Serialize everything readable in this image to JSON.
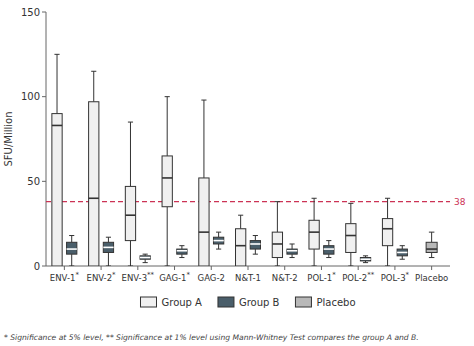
{
  "chart_data": {
    "type": "box",
    "ylabel": "SFU/Million",
    "categories": [
      "ENV-1",
      "ENV-2",
      "ENV-3",
      "GAG-1",
      "GAG-2",
      "N&T-1",
      "N&T-2",
      "POL-1",
      "POL-2",
      "POL-3",
      "Placebo"
    ],
    "significance": [
      "*",
      "*",
      "**",
      "*",
      null,
      null,
      null,
      "*",
      "**",
      "*",
      null
    ],
    "series": [
      {
        "name": "Group A",
        "color": "#f0f0f0",
        "values": [
          [
            0,
            0,
            83,
            90,
            125
          ],
          [
            0,
            0,
            40,
            97,
            115
          ],
          [
            0,
            15,
            30,
            47,
            85
          ],
          [
            0,
            35,
            52,
            65,
            100
          ],
          [
            0,
            0,
            20,
            52,
            98
          ],
          [
            0,
            0,
            12,
            22,
            30
          ],
          [
            0,
            5,
            13,
            20,
            38
          ],
          [
            0,
            10,
            20,
            27,
            40
          ],
          [
            0,
            8,
            18,
            25,
            37
          ],
          [
            0,
            12,
            22,
            28,
            40
          ],
          null
        ]
      },
      {
        "name": "Group B",
        "color": "#4a5e6a",
        "values": [
          [
            0,
            7,
            10,
            14,
            18
          ],
          [
            0,
            8,
            11,
            14,
            17
          ],
          [
            2,
            4,
            5,
            6,
            7
          ],
          [
            5,
            7,
            9,
            10,
            12
          ],
          [
            10,
            13,
            15,
            17,
            20
          ],
          [
            7,
            10,
            13,
            15,
            18
          ],
          [
            5,
            7,
            9,
            10,
            13
          ],
          [
            5,
            7,
            10,
            12,
            15
          ],
          [
            2,
            3,
            4,
            5,
            6
          ],
          [
            4,
            6,
            8,
            10,
            12
          ],
          null
        ]
      },
      {
        "name": "Placebo",
        "color": "#b8b8b8",
        "values": [
          null,
          null,
          null,
          null,
          null,
          null,
          null,
          null,
          null,
          null,
          [
            5,
            8,
            10,
            14,
            20
          ]
        ]
      }
    ],
    "reference_line": {
      "value": 38,
      "label": "38",
      "color": "#cc3355"
    },
    "ylim": [
      0,
      150
    ],
    "yticks": [
      0,
      50,
      100,
      150
    ],
    "grid": false,
    "legend": "bottom",
    "footnote": "* Significance at 5% level, ** Significance at 1% level using Mann-Whitney Test compares the group A and B."
  }
}
